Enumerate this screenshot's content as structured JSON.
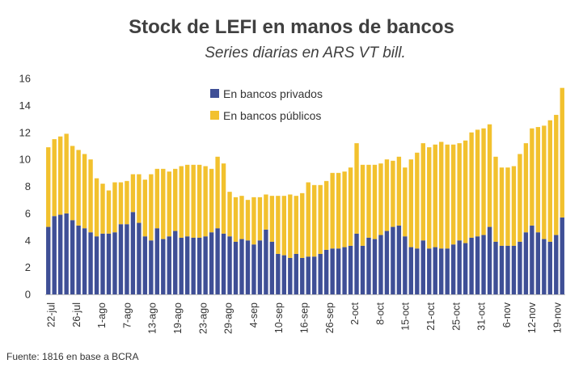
{
  "chart_data": {
    "type": "bar",
    "stacked": true,
    "title": "Stock de LEFI en manos de bancos",
    "subtitle": "Series diarias en ARS VT bill.",
    "xlabel": "",
    "ylabel": "",
    "ylim": [
      0,
      16
    ],
    "yticks": [
      0,
      2,
      4,
      6,
      8,
      10,
      12,
      14,
      16
    ],
    "grid": false,
    "legend_position": "top-center",
    "x_tick_labels": [
      "22-jul",
      "26-jul",
      "1-ago",
      "7-ago",
      "13-ago",
      "19-ago",
      "23-ago",
      "29-ago",
      "4-sep",
      "10-sep",
      "16-sep",
      "26-sep",
      "2-oct",
      "8-oct",
      "15-oct",
      "21-oct",
      "25-oct",
      "31-oct",
      "6-nov",
      "12-nov",
      "19-nov"
    ],
    "series": [
      {
        "name": "En bancos privados",
        "color": "#3f4f96",
        "values": [
          5.0,
          5.8,
          5.9,
          6.0,
          5.5,
          5.1,
          4.9,
          4.6,
          4.3,
          4.5,
          4.5,
          4.6,
          5.2,
          5.2,
          6.1,
          5.3,
          4.3,
          4.0,
          4.9,
          4.1,
          4.3,
          4.7,
          4.2,
          4.3,
          4.2,
          4.2,
          4.3,
          4.6,
          4.9,
          4.5,
          4.3,
          3.9,
          4.1,
          4.0,
          3.7,
          4.0,
          4.8,
          3.9,
          3.0,
          2.9,
          2.7,
          3.0,
          2.7,
          2.8,
          2.8,
          3.0,
          3.3,
          3.4,
          3.4,
          3.5,
          3.6,
          4.5,
          3.6,
          4.2,
          4.1,
          4.4,
          4.7,
          5.0,
          5.1,
          4.3,
          3.5,
          3.4,
          4.0,
          3.4,
          3.5,
          3.4,
          3.4,
          3.7,
          4.0,
          3.8,
          4.2,
          4.3,
          4.4,
          5.0,
          3.9,
          3.6,
          3.6,
          3.6,
          3.9,
          4.6,
          5.1,
          4.6,
          4.1,
          3.9,
          4.4,
          5.7
        ]
      },
      {
        "name": "En bancos públicos",
        "color": "#f2c12e",
        "values": [
          5.9,
          5.7,
          5.8,
          5.9,
          5.5,
          5.6,
          5.5,
          5.4,
          4.3,
          3.7,
          3.2,
          3.7,
          3.1,
          3.2,
          2.8,
          3.6,
          4.2,
          4.9,
          4.4,
          5.2,
          4.8,
          4.6,
          5.3,
          5.3,
          5.4,
          5.4,
          5.2,
          4.7,
          5.3,
          5.2,
          3.3,
          3.3,
          3.2,
          3.0,
          3.5,
          3.2,
          2.6,
          3.4,
          4.3,
          4.4,
          4.7,
          4.3,
          4.8,
          5.5,
          5.3,
          5.1,
          5.1,
          5.6,
          5.6,
          5.6,
          5.8,
          6.7,
          6.0,
          5.4,
          5.5,
          5.3,
          5.3,
          4.9,
          5.1,
          5.1,
          6.5,
          7.1,
          7.2,
          7.5,
          7.6,
          7.9,
          7.7,
          7.4,
          7.2,
          7.6,
          7.8,
          7.9,
          7.9,
          7.6,
          6.3,
          5.8,
          5.8,
          5.9,
          6.5,
          6.6,
          7.2,
          7.8,
          8.4,
          9.0,
          8.9,
          9.6
        ]
      }
    ]
  },
  "source_note": "Fuente: 1816 en base a BCRA"
}
